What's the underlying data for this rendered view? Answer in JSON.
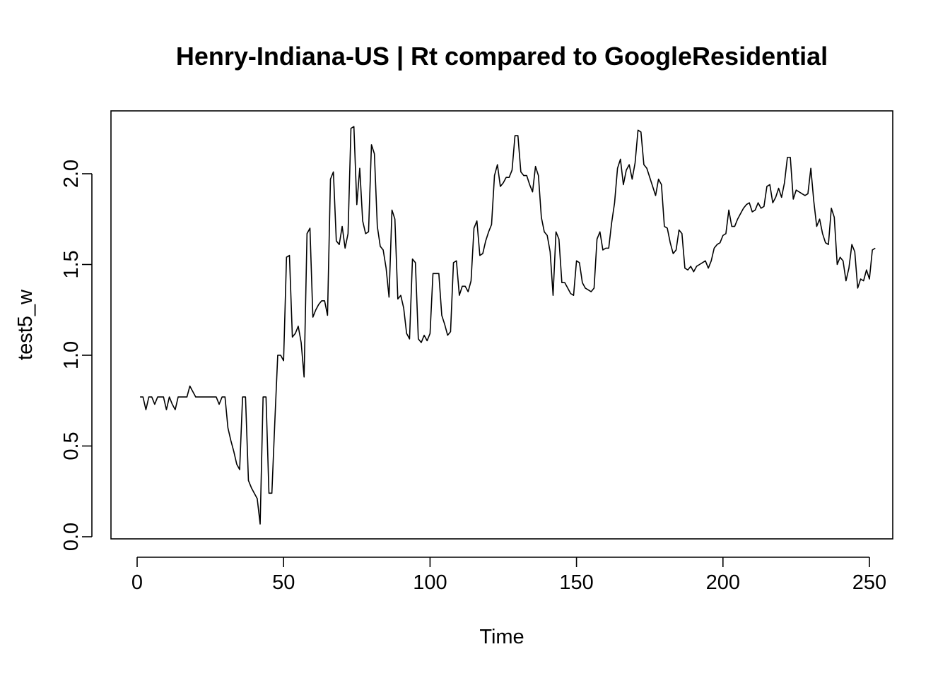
{
  "chart_data": {
    "type": "line",
    "title": "Henry-Indiana-US | Rt compared to GoogleResidential",
    "xlabel": "Time",
    "ylabel": "test5_w",
    "xlim": [
      0,
      250
    ],
    "ylim": [
      0.0,
      2.25
    ],
    "x_ticks": [
      0,
      50,
      100,
      150,
      200,
      250
    ],
    "x_tick_labels": [
      "0",
      "50",
      "100",
      "150",
      "200",
      "250"
    ],
    "y_ticks": [
      0.0,
      0.5,
      1.0,
      1.5,
      2.0
    ],
    "y_tick_labels": [
      "0.0",
      "0.5",
      "1.0",
      "1.5",
      "2.0"
    ],
    "grid": false,
    "legend": "none",
    "series": [
      {
        "color": "#000000",
        "x_start": 1,
        "x_step": 1,
        "values": [
          0.77,
          0.77,
          0.7,
          0.77,
          0.77,
          0.73,
          0.77,
          0.77,
          0.77,
          0.7,
          0.77,
          0.73,
          0.7,
          0.77,
          0.77,
          0.77,
          0.77,
          0.83,
          0.8,
          0.77,
          0.77,
          0.77,
          0.77,
          0.77,
          0.77,
          0.77,
          0.77,
          0.73,
          0.77,
          0.77,
          0.6,
          0.53,
          0.47,
          0.4,
          0.37,
          0.77,
          0.77,
          0.31,
          0.27,
          0.24,
          0.21,
          0.07,
          0.77,
          0.77,
          0.24,
          0.24,
          0.63,
          1.0,
          1.0,
          0.97,
          1.54,
          1.55,
          1.1,
          1.12,
          1.16,
          1.07,
          0.88,
          1.67,
          1.7,
          1.21,
          1.25,
          1.28,
          1.3,
          1.3,
          1.22,
          1.97,
          2.01,
          1.63,
          1.61,
          1.71,
          1.59,
          1.67,
          2.25,
          2.26,
          1.83,
          2.03,
          1.74,
          1.67,
          1.68,
          2.16,
          2.11,
          1.71,
          1.6,
          1.58,
          1.48,
          1.32,
          1.8,
          1.75,
          1.31,
          1.33,
          1.26,
          1.12,
          1.09,
          1.53,
          1.51,
          1.09,
          1.07,
          1.11,
          1.08,
          1.12,
          1.45,
          1.45,
          1.45,
          1.22,
          1.17,
          1.11,
          1.13,
          1.51,
          1.52,
          1.33,
          1.38,
          1.38,
          1.35,
          1.41,
          1.7,
          1.74,
          1.55,
          1.56,
          1.63,
          1.68,
          1.72,
          1.99,
          2.05,
          1.93,
          1.95,
          1.98,
          1.98,
          2.02,
          2.21,
          2.21,
          2.01,
          1.99,
          1.99,
          1.94,
          1.9,
          2.04,
          1.99,
          1.76,
          1.68,
          1.66,
          1.57,
          1.33,
          1.68,
          1.64,
          1.4,
          1.4,
          1.37,
          1.34,
          1.33,
          1.52,
          1.51,
          1.4,
          1.37,
          1.36,
          1.35,
          1.37,
          1.64,
          1.68,
          1.58,
          1.59,
          1.59,
          1.73,
          1.84,
          2.03,
          2.08,
          1.94,
          2.02,
          2.05,
          1.97,
          2.06,
          2.24,
          2.23,
          2.05,
          2.03,
          1.98,
          1.93,
          1.88,
          1.97,
          1.94,
          1.71,
          1.7,
          1.62,
          1.56,
          1.58,
          1.69,
          1.67,
          1.48,
          1.47,
          1.49,
          1.46,
          1.49,
          1.5,
          1.51,
          1.52,
          1.48,
          1.52,
          1.59,
          1.61,
          1.62,
          1.66,
          1.67,
          1.8,
          1.71,
          1.71,
          1.75,
          1.78,
          1.81,
          1.83,
          1.84,
          1.79,
          1.8,
          1.84,
          1.81,
          1.82,
          1.93,
          1.94,
          1.84,
          1.87,
          1.92,
          1.87,
          1.95,
          2.09,
          2.09,
          1.86,
          1.91,
          1.9,
          1.89,
          1.88,
          1.89,
          2.03,
          1.85,
          1.71,
          1.75,
          1.67,
          1.62,
          1.61,
          1.81,
          1.76,
          1.5,
          1.54,
          1.52,
          1.41,
          1.48,
          1.61,
          1.57,
          1.37,
          1.42,
          1.41,
          1.47,
          1.42,
          1.58,
          1.59
        ]
      }
    ]
  }
}
